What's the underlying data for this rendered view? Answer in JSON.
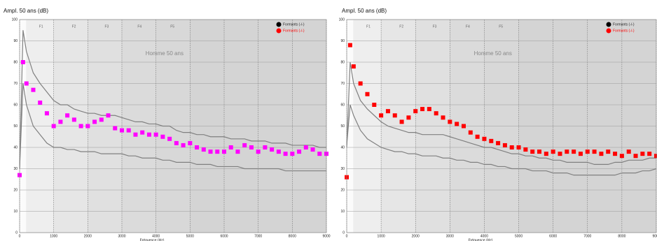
{
  "chart_data": [
    {
      "type": "line",
      "title": "Ampl. 50 ans (dB)",
      "xlabel": "Fréquence (Hz)",
      "annotation": "Homme  50 ans",
      "zones": [
        "F1",
        "F2",
        "F3",
        "F4",
        "F5"
      ],
      "legend": [
        {
          "name": "Formants (-/-)",
          "color": "#000000"
        },
        {
          "name": "Formants (-/-)",
          "color": "#ff0000"
        }
      ],
      "x": [
        0,
        100,
        200,
        400,
        600,
        800,
        1000,
        1200,
        1400,
        1600,
        1800,
        2000,
        2200,
        2400,
        2600,
        2800,
        3000,
        3200,
        3400,
        3600,
        3800,
        4000,
        4200,
        4400,
        4600,
        4800,
        5000,
        5200,
        5400,
        5600,
        5800,
        6000,
        6200,
        6400,
        6600,
        6800,
        7000,
        7200,
        7400,
        7600,
        7800,
        8000,
        8200,
        8400,
        8600,
        8800,
        9000
      ],
      "series": [
        {
          "style": "line",
          "color": "#808080",
          "values": [
            30,
            95,
            85,
            75,
            70,
            66,
            62,
            60,
            60,
            58,
            57,
            56,
            56,
            55,
            55,
            55,
            54,
            53,
            52,
            52,
            51,
            51,
            50,
            50,
            48,
            47,
            47,
            46,
            46,
            45,
            45,
            45,
            44,
            44,
            44,
            43,
            43,
            43,
            42,
            42,
            42,
            41,
            41,
            41,
            41,
            40,
            40
          ]
        },
        {
          "style": "line",
          "color": "#808080",
          "values": [
            30,
            70,
            60,
            50,
            46,
            42,
            40,
            40,
            39,
            39,
            38,
            38,
            38,
            37,
            37,
            37,
            37,
            36,
            36,
            35,
            35,
            35,
            34,
            34,
            33,
            33,
            33,
            32,
            32,
            32,
            31,
            31,
            31,
            31,
            30,
            30,
            30,
            30,
            30,
            30,
            29,
            29,
            29,
            29,
            29,
            29,
            29
          ]
        },
        {
          "style": "markers",
          "color": "#ff00ff",
          "values": [
            27,
            80,
            70,
            67,
            61,
            56,
            50,
            52,
            55,
            53,
            50,
            50,
            52,
            53,
            55,
            49,
            48,
            48,
            46,
            47,
            46,
            46,
            45,
            44,
            42,
            41,
            42,
            40,
            39,
            38,
            38,
            38,
            40,
            38,
            41,
            40,
            38,
            40,
            39,
            38,
            37,
            37,
            38,
            40,
            39,
            37,
            37
          ]
        }
      ],
      "xlim": [
        0,
        9000
      ],
      "ylim": [
        0,
        100
      ],
      "xticks": [
        0,
        1000,
        2000,
        3000,
        4000,
        5000,
        6000,
        7000,
        8000,
        9000
      ],
      "yticks": [
        0,
        10,
        20,
        30,
        40,
        50,
        60,
        70,
        80,
        90,
        100
      ],
      "grid": true
    },
    {
      "type": "line",
      "title": "Ampl. 50 ans (dB)",
      "xlabel": "Fréquence (Hz)",
      "annotation": "Homme  50 ans",
      "zones": [
        "F1",
        "F2",
        "F3",
        "F4",
        "F5"
      ],
      "legend": [
        {
          "name": "Formants (-/-)",
          "color": "#000000"
        },
        {
          "name": "Formants (-/-)",
          "color": "#ff0000"
        }
      ],
      "x": [
        0,
        100,
        200,
        400,
        600,
        800,
        1000,
        1200,
        1400,
        1600,
        1800,
        2000,
        2200,
        2400,
        2600,
        2800,
        3000,
        3200,
        3400,
        3600,
        3800,
        4000,
        4200,
        4400,
        4600,
        4800,
        5000,
        5200,
        5400,
        5600,
        5800,
        6000,
        6200,
        6400,
        6600,
        6800,
        7000,
        7200,
        7400,
        7600,
        7800,
        8000,
        8200,
        8400,
        8600,
        8800,
        9000
      ],
      "series": [
        {
          "style": "line",
          "color": "#808080",
          "values": [
            40,
            80,
            70,
            62,
            58,
            55,
            52,
            50,
            49,
            48,
            47,
            47,
            46,
            46,
            46,
            46,
            45,
            44,
            43,
            42,
            41,
            40,
            40,
            39,
            38,
            37,
            37,
            36,
            36,
            35,
            35,
            34,
            34,
            33,
            33,
            33,
            33,
            32,
            32,
            32,
            33,
            33,
            34,
            34,
            34,
            35,
            35
          ]
        },
        {
          "style": "line",
          "color": "#808080",
          "values": [
            41,
            60,
            55,
            48,
            44,
            42,
            40,
            39,
            38,
            38,
            37,
            37,
            36,
            36,
            36,
            35,
            35,
            34,
            34,
            33,
            33,
            32,
            32,
            31,
            31,
            30,
            30,
            30,
            29,
            29,
            29,
            28,
            28,
            28,
            27,
            27,
            27,
            27,
            27,
            27,
            27,
            28,
            28,
            28,
            29,
            29,
            30
          ]
        },
        {
          "style": "markers",
          "color": "#ff0000",
          "values": [
            26,
            88,
            78,
            70,
            65,
            60,
            55,
            57,
            55,
            52,
            54,
            57,
            58,
            58,
            56,
            54,
            52,
            51,
            50,
            47,
            45,
            44,
            43,
            42,
            41,
            40,
            40,
            39,
            38,
            38,
            37,
            38,
            37,
            38,
            38,
            37,
            38,
            38,
            37,
            38,
            37,
            36,
            38,
            36,
            37,
            37,
            36
          ]
        }
      ],
      "xlim": [
        0,
        9000
      ],
      "ylim": [
        0,
        100
      ],
      "xticks": [
        0,
        1000,
        2000,
        3000,
        4000,
        5000,
        6000,
        7000,
        8000,
        9000
      ],
      "yticks": [
        0,
        10,
        20,
        30,
        40,
        50,
        60,
        70,
        80,
        90,
        100
      ],
      "grid": true
    }
  ]
}
